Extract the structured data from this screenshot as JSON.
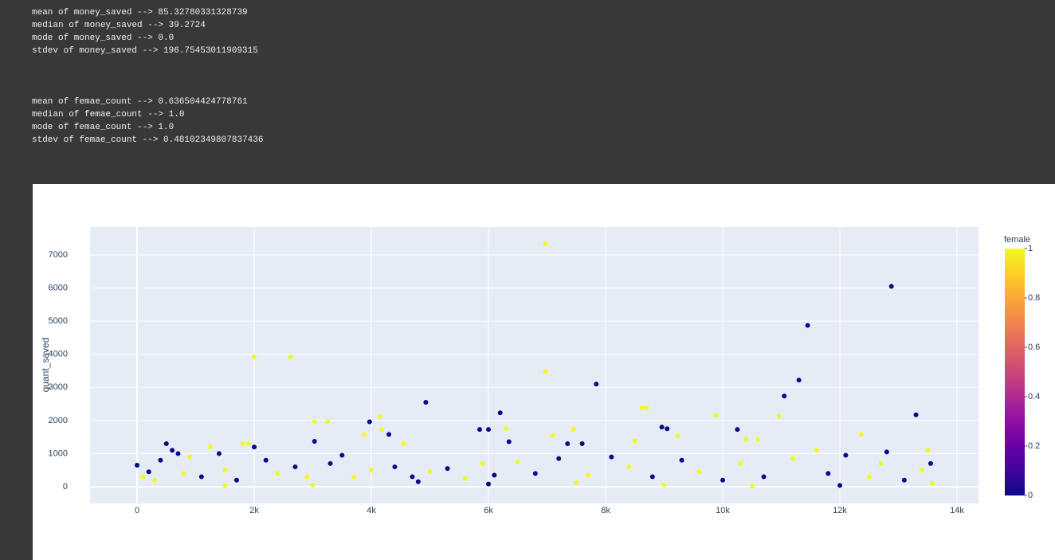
{
  "console": {
    "blocks": [
      [
        "mean of money_saved --> 85.32780331328739",
        "median of money_saved --> 39.2724",
        "mode of money_saved --> 0.0",
        "stdev of money_saved --> 196.75453011909315"
      ],
      [
        "mean of femae_count --> 0.636504424778761",
        "median of femae_count --> 1.0",
        "mode of femae_count --> 1.0",
        "stdev of femae_count --> 0.48102349807837436"
      ]
    ]
  },
  "chart_data": {
    "type": "scatter",
    "y_label": "quant_saved",
    "x": [
      6970,
      12880,
      11450,
      2000,
      2620,
      6970,
      11300,
      7840,
      11050,
      4930,
      8620,
      8700,
      6200,
      13300,
      9880,
      10960,
      4150,
      3030,
      3250,
      3970,
      8960,
      9050,
      5850,
      6000,
      10250,
      7450,
      4180,
      6300,
      12360,
      4300,
      3880,
      9230,
      6350,
      3030,
      500,
      1800,
      1900,
      7100,
      7350,
      7600,
      10400,
      10600,
      8500,
      600,
      2000,
      1250,
      4550,
      11600,
      13500,
      12800,
      0,
      100,
      200,
      300,
      400,
      700,
      800,
      900,
      1100,
      1400,
      1500,
      1700,
      2200,
      2400,
      2700,
      2900,
      3300,
      3500,
      3700,
      4000,
      4400,
      4700,
      5000,
      5300,
      5600,
      5900,
      6100,
      6500,
      6800,
      7200,
      7700,
      8100,
      8400,
      8800,
      9300,
      9600,
      10000,
      10300,
      10700,
      11200,
      11800,
      12100,
      12500,
      12700,
      13100,
      13400,
      13550,
      13580,
      3000,
      6000,
      9000,
      12000,
      1500,
      7500,
      10500,
      4800
    ],
    "values": [
      7340,
      6050,
      4870,
      3920,
      3920,
      3480,
      3220,
      3100,
      2740,
      2550,
      2380,
      2380,
      2230,
      2170,
      2160,
      2140,
      2130,
      1960,
      1960,
      1960,
      1800,
      1750,
      1730,
      1730,
      1730,
      1730,
      1720,
      1760,
      1580,
      1580,
      1570,
      1530,
      1360,
      1370,
      1300,
      1300,
      1300,
      1550,
      1300,
      1300,
      1440,
      1420,
      1380,
      1100,
      1200,
      1200,
      1300,
      1100,
      1100,
      1050,
      650,
      300,
      450,
      200,
      800,
      1000,
      400,
      900,
      300,
      1000,
      500,
      200,
      800,
      400,
      600,
      300,
      700,
      950,
      300,
      500,
      600,
      300,
      450,
      550,
      250,
      700,
      350,
      750,
      400,
      850,
      350,
      900,
      600,
      300,
      800,
      450,
      200,
      700,
      300,
      850,
      400,
      950,
      300,
      700,
      200,
      500,
      700,
      100,
      50,
      80,
      60,
      40,
      30,
      120,
      20,
      150
    ],
    "color_axis": {
      "title": "female",
      "values": [
        1,
        0,
        0,
        1,
        1,
        1,
        0,
        0,
        0,
        0,
        1,
        1,
        0,
        0,
        1,
        1,
        1,
        1,
        1,
        0,
        0,
        0,
        0,
        0,
        0,
        1,
        1,
        1,
        1,
        0,
        1,
        1,
        0,
        0,
        0,
        1,
        1,
        1,
        0,
        0,
        1,
        1,
        1,
        0,
        0,
        1,
        1,
        1,
        1,
        0,
        0,
        1,
        0,
        1,
        0,
        0,
        1,
        1,
        0,
        0,
        1,
        0,
        0,
        1,
        0,
        1,
        0,
        0,
        1,
        1,
        0,
        0,
        1,
        0,
        1,
        1,
        0,
        1,
        0,
        0,
        1,
        0,
        1,
        0,
        0,
        1,
        0,
        1,
        0,
        1,
        0,
        0,
        1,
        1,
        0,
        1,
        0,
        1,
        1,
        0,
        1,
        0,
        1,
        1,
        1,
        0
      ],
      "lim": [
        0,
        1
      ],
      "ticks": [
        0,
        0.2,
        0.4,
        0.6,
        0.8,
        1
      ],
      "colorscale": [
        "#0d0887",
        "#46039f",
        "#7201a8",
        "#9c179e",
        "#bd3786",
        "#d8576b",
        "#ed7953",
        "#fb9f3a",
        "#fdca26",
        "#f0f921"
      ]
    },
    "xlim": [
      -803,
      14367
    ],
    "ylim": [
      -505,
      7842
    ],
    "xticks": [
      0,
      {
        "value": 2000,
        "label": "2k"
      },
      {
        "value": 4000,
        "label": "4k"
      },
      {
        "value": 6000,
        "label": "6k"
      },
      {
        "value": 8000,
        "label": "8k"
      },
      {
        "value": 10000,
        "label": "10k"
      },
      {
        "value": 12000,
        "label": "12k"
      },
      {
        "value": 14000,
        "label": "14k"
      }
    ],
    "yticks": [
      0,
      1000,
      2000,
      3000,
      4000,
      5000,
      6000,
      7000
    ],
    "grid": true,
    "plot_bg": "#e5ecf6"
  }
}
